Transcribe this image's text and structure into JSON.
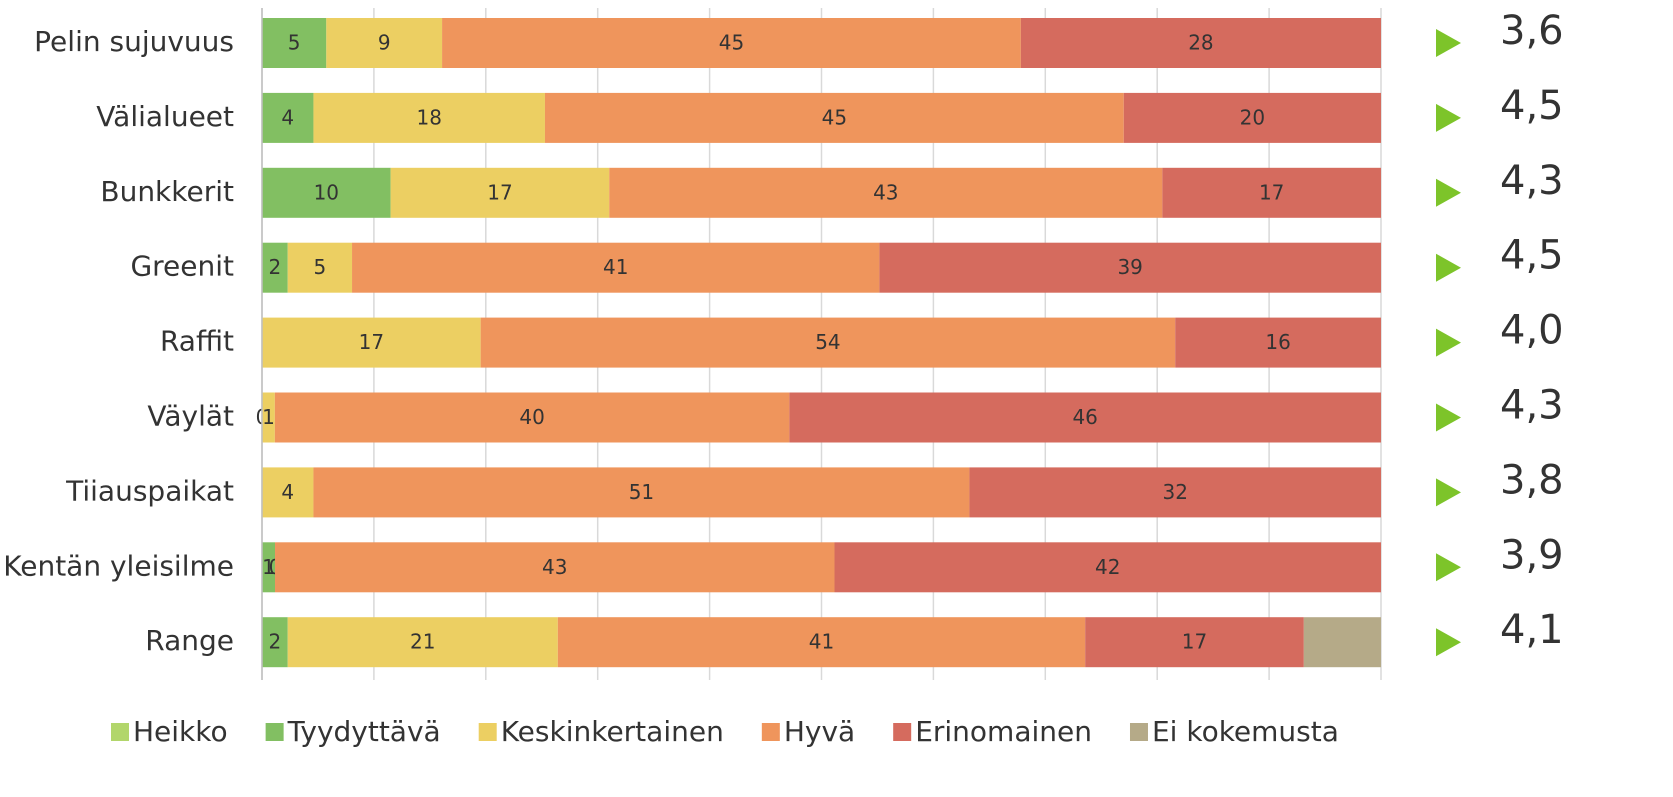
{
  "chart_data": {
    "type": "stacked_bar_100",
    "categories": [
      "Pelin sujuvuus",
      "Välialueet",
      "Bunkkerit",
      "Greenit",
      "Raffit",
      "Väylät",
      "Tiiauspaikat",
      "Kentän yleisilme",
      "Range"
    ],
    "series": [
      {
        "name": "Heikko",
        "color": "#b2d66b",
        "values": [
          null,
          null,
          null,
          null,
          null,
          null,
          null,
          null,
          null
        ]
      },
      {
        "name": "Tyydyttävä",
        "color": "#82bf62",
        "values": [
          5,
          4,
          10,
          2,
          null,
          0,
          null,
          1,
          2
        ]
      },
      {
        "name": "Keskinkertainen",
        "color": "#eccf62",
        "values": [
          9,
          18,
          17,
          5,
          17,
          1,
          4,
          0,
          21
        ]
      },
      {
        "name": "Hyvä",
        "color": "#ef955c",
        "values": [
          45,
          45,
          43,
          41,
          54,
          40,
          51,
          43,
          41
        ]
      },
      {
        "name": "Erinomainen",
        "color": "#d56b5e",
        "values": [
          28,
          20,
          17,
          39,
          16,
          46,
          32,
          42,
          17
        ]
      },
      {
        "name": "Ei kokemusta",
        "color": "#b5aa88",
        "values": [
          null,
          null,
          null,
          null,
          null,
          null,
          null,
          null,
          6
        ],
        "labels": false
      }
    ],
    "annotations": [
      "3,6",
      "4,5",
      "4,3",
      "4,5",
      "4,0",
      "4,3",
      "3,8",
      "3,9",
      "4,1"
    ],
    "annotation_marker_color": "#7dc42a",
    "xlim": [
      0,
      100
    ],
    "xticks": [
      0,
      10,
      20,
      30,
      40,
      50,
      60,
      70,
      80,
      90,
      100
    ],
    "grid": true
  }
}
